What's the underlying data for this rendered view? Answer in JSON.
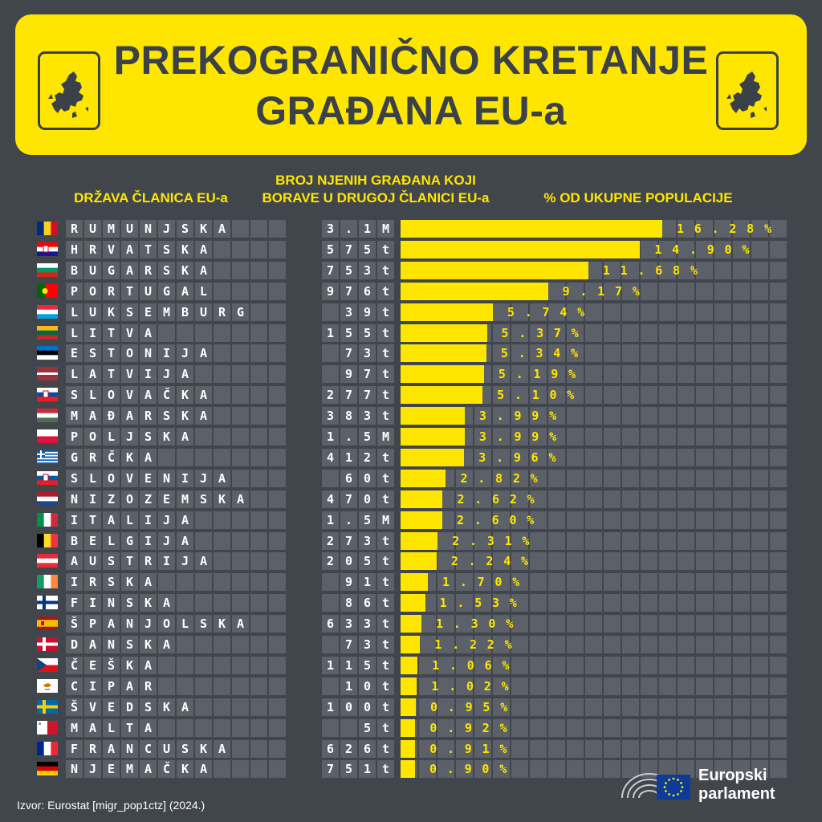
{
  "title": {
    "line1": "PREKOGRANIČNO KRETANJE",
    "line2": "GRAĐANA EU-a"
  },
  "headers": {
    "country": "DRŽAVA ČLANICA EU-a",
    "citizens_line1": "BROJ NJENIH GRAĐANA KOJI",
    "citizens_line2": "BORAVE U DRUGOJ ČLANICI EU-a",
    "percent": "% OD UKUPNE POPULACIJE"
  },
  "colors": {
    "background": "#41464d",
    "accent": "#ffe600",
    "cell": "#5c6169",
    "title_text": "#3b4149"
  },
  "chart_data": {
    "type": "bar",
    "orientation": "horizontal",
    "xlabel": "% OD UKUPNE POPULACIJE",
    "categories": [
      "RUMUNJSKA",
      "HRVATSKA",
      "BUGARSKA",
      "PORTUGAL",
      "LUKSEMBURG",
      "LITVA",
      "ESTONIJA",
      "LATVIJA",
      "SLOVAČKA",
      "MAĐARSKA",
      "POLJSKA",
      "GRČKA",
      "SLOVENIJA",
      "NIZOZEMSKA",
      "ITALIJA",
      "BELGIJA",
      "AUSTRIJA",
      "IRSKA",
      "FINSKA",
      "ŠPANJOLSKA",
      "DANSKA",
      "ČEŠKA",
      "CIPAR",
      "ŠVEDSKA",
      "MALTA",
      "FRANCUSKA",
      "NJEMAČKA"
    ],
    "citizens_abroad": [
      "3.1M",
      "575t",
      "753t",
      "976t",
      "39t",
      "155t",
      "73t",
      "97t",
      "277t",
      "383t",
      "1.5M",
      "412t",
      "60t",
      "470t",
      "1.5M",
      "273t",
      "205t",
      "91t",
      "86t",
      "633t",
      "73t",
      "115t",
      "10t",
      "100t",
      "5t",
      "626t",
      "751t"
    ],
    "values": [
      16.28,
      14.9,
      11.68,
      9.17,
      5.74,
      5.37,
      5.34,
      5.19,
      5.1,
      3.99,
      3.99,
      3.96,
      2.82,
      2.62,
      2.6,
      2.31,
      2.24,
      1.7,
      1.53,
      1.3,
      1.22,
      1.06,
      1.02,
      0.95,
      0.92,
      0.91,
      0.9
    ],
    "value_labels": [
      "16.28%",
      "14.90%",
      "11.68%",
      "9.17%",
      "5.74%",
      "5.37%",
      "5.34%",
      "5.19%",
      "5.10%",
      "3.99%",
      "3.99%",
      "3.96%",
      "2.82%",
      "2.62%",
      "2.60%",
      "2.31%",
      "2.24%",
      "1.70%",
      "1.53%",
      "1.30%",
      "1.22%",
      "1.06%",
      "1.02%",
      "0.95%",
      "0.92%",
      "0.91%",
      "0.90%"
    ],
    "flag_icons": [
      "flag-romania-icon",
      "flag-croatia-icon",
      "flag-bulgaria-icon",
      "flag-portugal-icon",
      "flag-luxembourg-icon",
      "flag-lithuania-icon",
      "flag-estonia-icon",
      "flag-latvia-icon",
      "flag-slovakia-icon",
      "flag-hungary-icon",
      "flag-poland-icon",
      "flag-greece-icon",
      "flag-slovenia-icon",
      "flag-netherlands-icon",
      "flag-italy-icon",
      "flag-belgium-icon",
      "flag-austria-icon",
      "flag-ireland-icon",
      "flag-finland-icon",
      "flag-spain-icon",
      "flag-denmark-icon",
      "flag-czechia-icon",
      "flag-cyprus-icon",
      "flag-sweden-icon",
      "flag-malta-icon",
      "flag-france-icon",
      "flag-germany-icon"
    ]
  },
  "source": "Izvor: Eurostat [migr_pop1ctz] (2024.)",
  "logo": {
    "line1": "Europski",
    "line2": "parlament"
  }
}
